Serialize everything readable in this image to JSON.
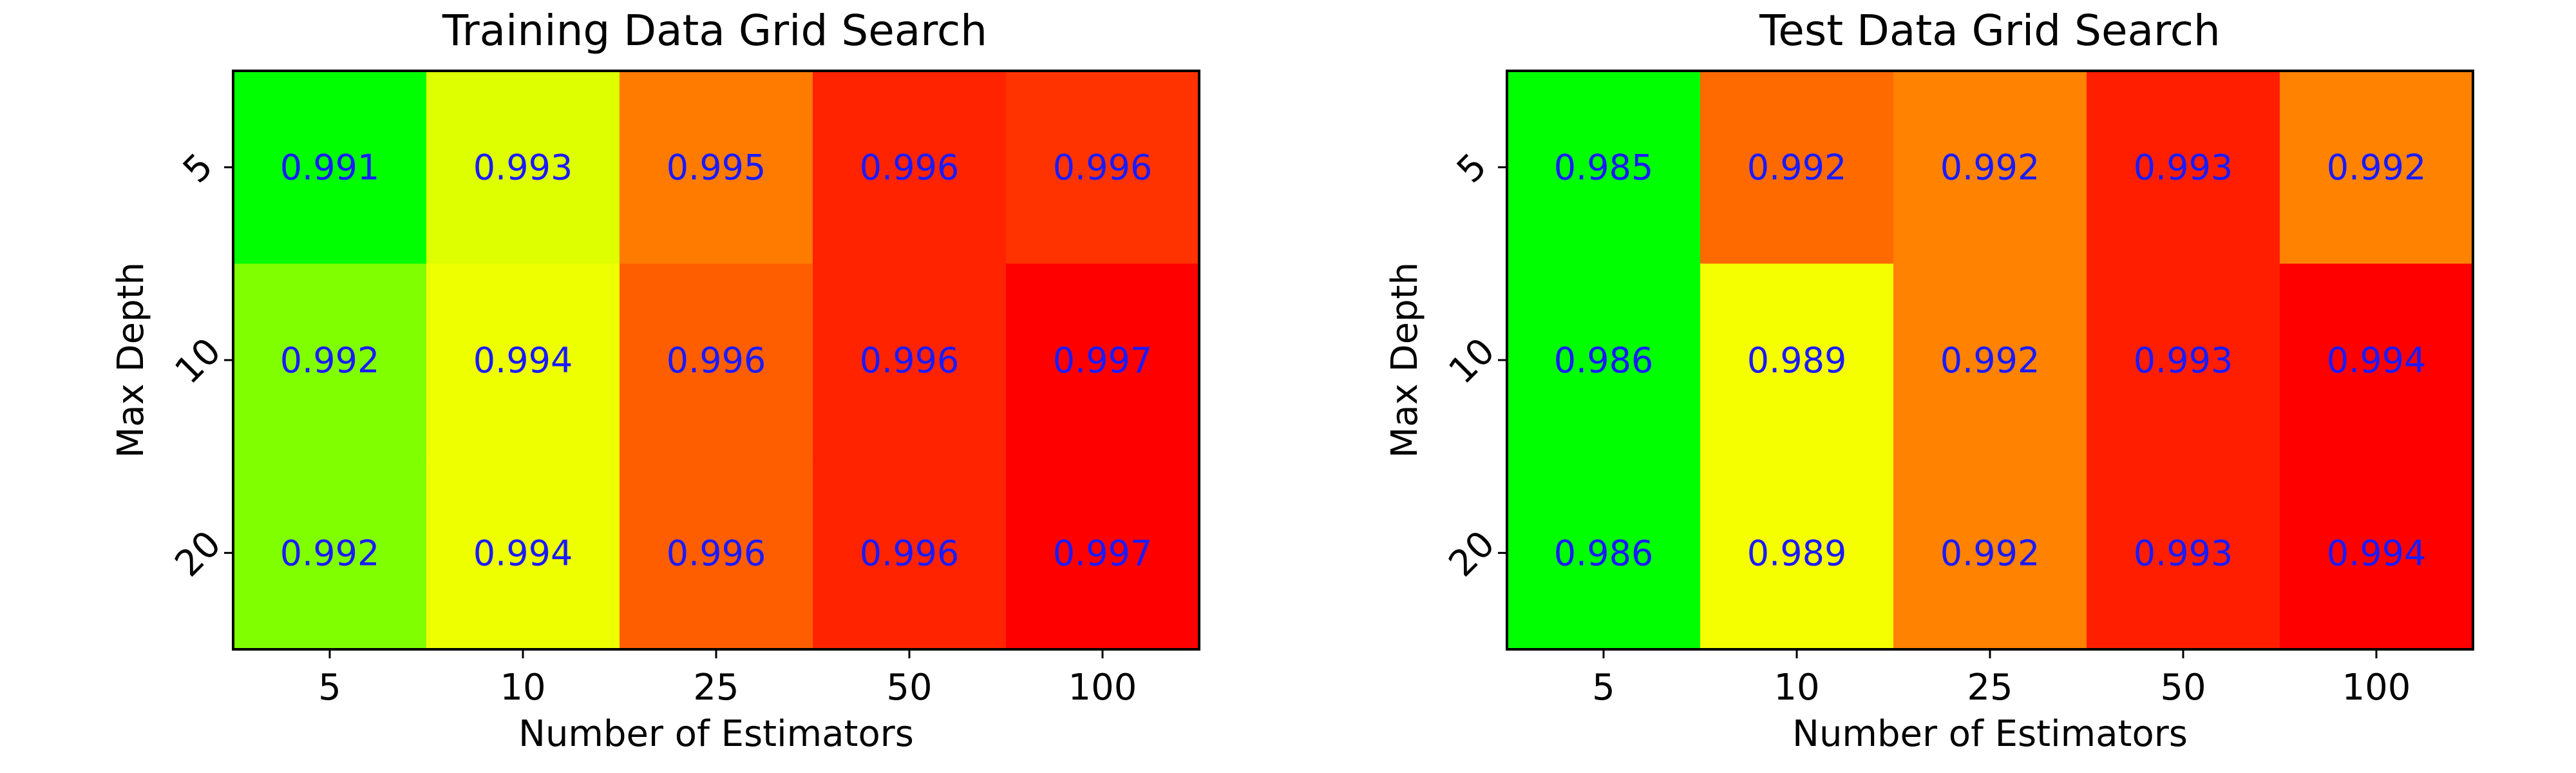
{
  "chart_data": [
    {
      "type": "heatmap",
      "title": "Training Data Grid Search",
      "xlabel": "Number of Estimators",
      "ylabel": "Max Depth",
      "x_categories": [
        "5",
        "10",
        "25",
        "50",
        "100"
      ],
      "y_categories": [
        "5",
        "10",
        "20"
      ],
      "values": [
        [
          0.991,
          0.993,
          0.995,
          0.996,
          0.996
        ],
        [
          0.992,
          0.994,
          0.996,
          0.996,
          0.997
        ],
        [
          0.992,
          0.994,
          0.996,
          0.996,
          0.997
        ]
      ],
      "value_labels": [
        [
          "0.991",
          "0.993",
          "0.995",
          "0.996",
          "0.996"
        ],
        [
          "0.992",
          "0.994",
          "0.996",
          "0.996",
          "0.997"
        ],
        [
          "0.992",
          "0.994",
          "0.996",
          "0.996",
          "0.997"
        ]
      ],
      "colormap": "green-yellow-red (low to high)",
      "annotation_color": "#1a1aff"
    },
    {
      "type": "heatmap",
      "title": "Test Data Grid Search",
      "xlabel": "Number of Estimators",
      "ylabel": "Max Depth",
      "x_categories": [
        "5",
        "10",
        "25",
        "50",
        "100"
      ],
      "y_categories": [
        "5",
        "10",
        "20"
      ],
      "values": [
        [
          0.985,
          0.992,
          0.992,
          0.993,
          0.992
        ],
        [
          0.986,
          0.989,
          0.992,
          0.993,
          0.994
        ],
        [
          0.986,
          0.989,
          0.992,
          0.993,
          0.994
        ]
      ],
      "value_labels": [
        [
          "0.985",
          "0.992",
          "0.992",
          "0.993",
          "0.992"
        ],
        [
          "0.986",
          "0.989",
          "0.992",
          "0.993",
          "0.994"
        ],
        [
          "0.986",
          "0.989",
          "0.992",
          "0.993",
          "0.994"
        ]
      ],
      "colormap": "green-yellow-red (low to high)",
      "annotation_color": "#1a1aff"
    }
  ],
  "colors": {
    "cells": [
      [
        [
          "#00ff00",
          "#ddff00",
          "#ff7b00",
          "#ff2300",
          "#ff3300"
        ],
        [
          "#80ff00",
          "#eeff00",
          "#ff5e00",
          "#ff2300",
          "#ff0000"
        ],
        [
          "#80ff00",
          "#eeff00",
          "#ff5e00",
          "#ff2300",
          "#ff0000"
        ]
      ],
      [
        [
          "#00ff00",
          "#ff6a00",
          "#ff8200",
          "#ff1f00",
          "#ff8200"
        ],
        [
          "#00ff00",
          "#f5ff00",
          "#ff8200",
          "#ff1f00",
          "#ff0000"
        ],
        [
          "#00ff00",
          "#f5ff00",
          "#ff8200",
          "#ff1f00",
          "#ff0000"
        ]
      ]
    ],
    "annotation": "#1a1aff",
    "text": "#000000"
  }
}
